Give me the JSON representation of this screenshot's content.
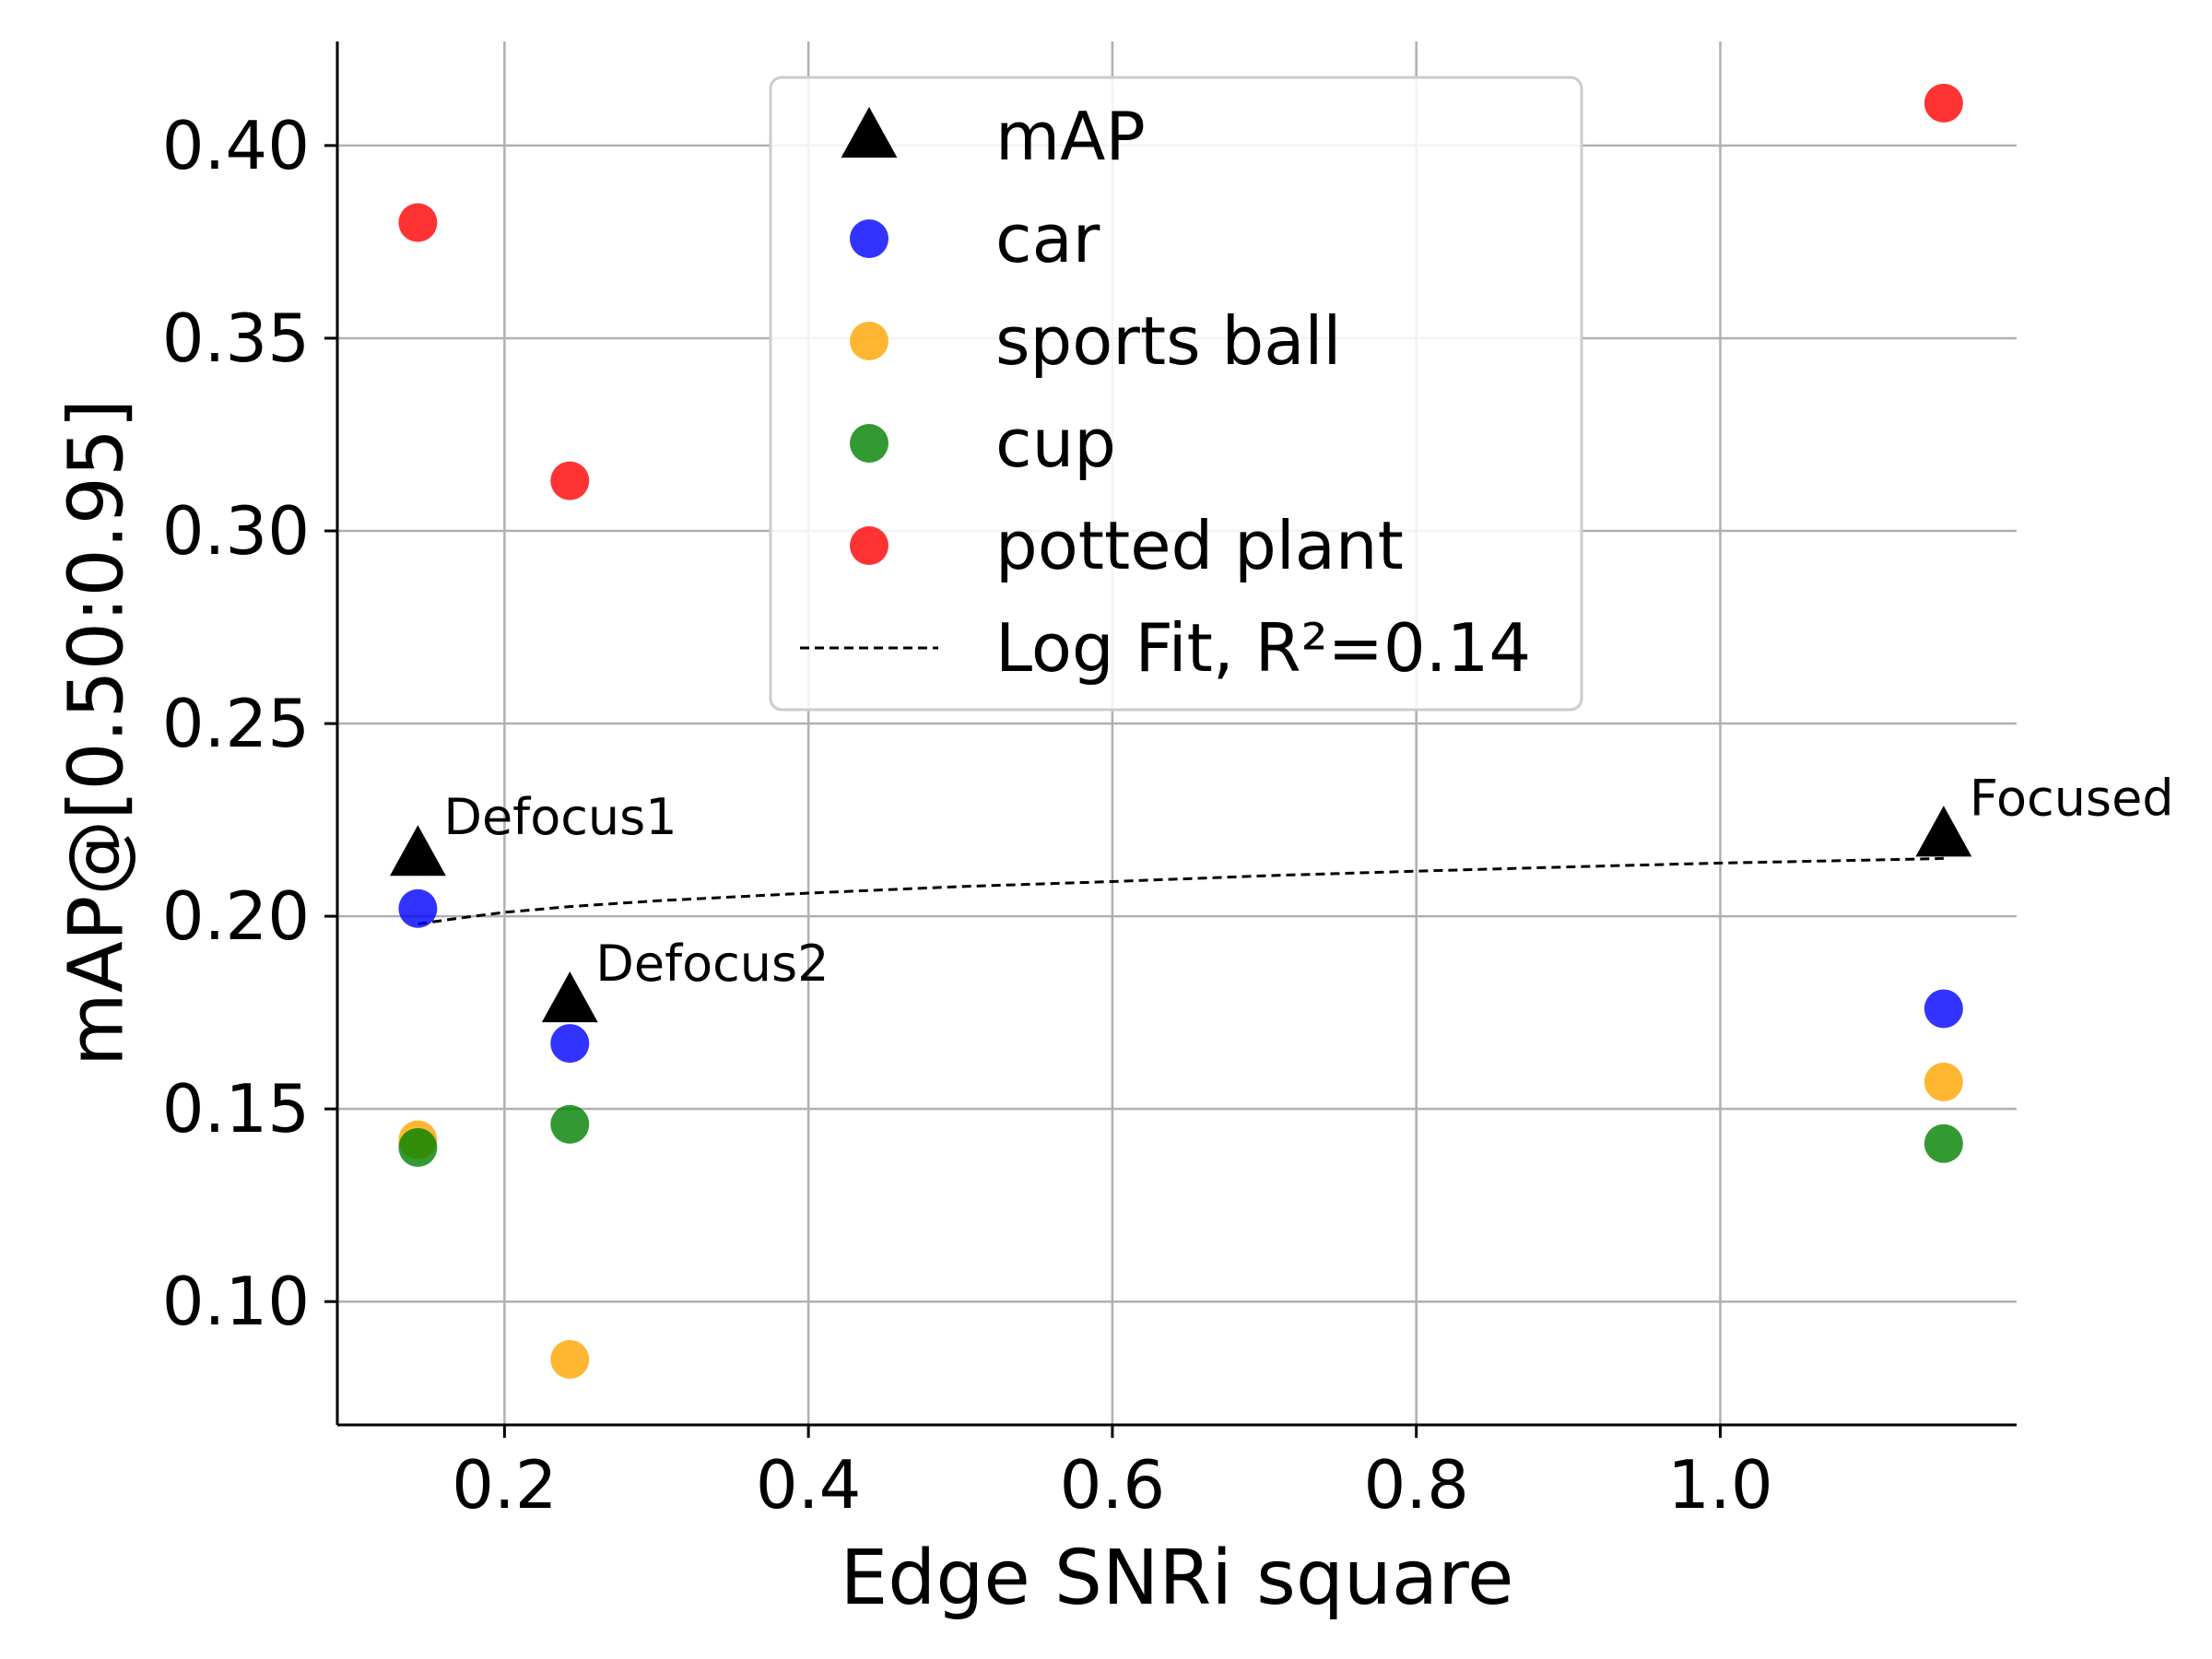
{
  "chart_data": {
    "type": "scatter",
    "title": "",
    "xlabel": "Edge SNRi square",
    "ylabel": "mAP@[0.50:0.95]",
    "xlim": [
      0.09,
      1.195
    ],
    "ylim": [
      0.068,
      0.427
    ],
    "xticks": [
      0.2,
      0.4,
      0.6,
      0.8,
      1.0
    ],
    "xtick_labels": [
      "0.2",
      "0.4",
      "0.6",
      "0.8",
      "1.0"
    ],
    "yticks": [
      0.1,
      0.15,
      0.2,
      0.25,
      0.3,
      0.35,
      0.4
    ],
    "ytick_labels": [
      "0.10",
      "0.15",
      "0.20",
      "0.25",
      "0.30",
      "0.35",
      "0.40"
    ],
    "grid": true,
    "legend_position": "top-center",
    "series": [
      {
        "name": "mAP",
        "marker": "triangle",
        "color": "#000000",
        "x": [
          0.143,
          0.243,
          1.147
        ],
        "y": [
          0.216,
          0.178,
          0.221
        ]
      },
      {
        "name": "car",
        "marker": "circle",
        "color": "#0000ff",
        "x": [
          0.143,
          0.243,
          1.147
        ],
        "y": [
          0.202,
          0.167,
          0.176
        ]
      },
      {
        "name": "sports ball",
        "marker": "circle",
        "color": "#ffa500",
        "x": [
          0.143,
          0.243,
          1.147
        ],
        "y": [
          0.142,
          0.085,
          0.157
        ]
      },
      {
        "name": "cup",
        "marker": "circle",
        "color": "#008000",
        "x": [
          0.143,
          0.243,
          1.147
        ],
        "y": [
          0.14,
          0.146,
          0.141
        ]
      },
      {
        "name": "potted plant",
        "marker": "circle",
        "color": "#ff0000",
        "x": [
          0.143,
          0.243,
          1.147
        ],
        "y": [
          0.38,
          0.313,
          0.411
        ]
      }
    ],
    "fit": {
      "name": "Log Fit, R²=0.14",
      "style": "dashed",
      "color": "#000000",
      "x": [
        0.143,
        0.17,
        0.2,
        0.243,
        0.3,
        0.4,
        0.5,
        0.6,
        0.7,
        0.8,
        0.9,
        1.0,
        1.1,
        1.147
      ],
      "y": [
        0.198,
        0.1995,
        0.201,
        0.2025,
        0.204,
        0.206,
        0.2077,
        0.209,
        0.2105,
        0.2117,
        0.2128,
        0.2138,
        0.2146,
        0.215
      ]
    },
    "annotations": [
      {
        "text": "Defocus1",
        "x": 0.143,
        "y": 0.216
      },
      {
        "text": "Defocus2",
        "x": 0.243,
        "y": 0.178
      },
      {
        "text": "Focused",
        "x": 1.147,
        "y": 0.221
      }
    ]
  }
}
